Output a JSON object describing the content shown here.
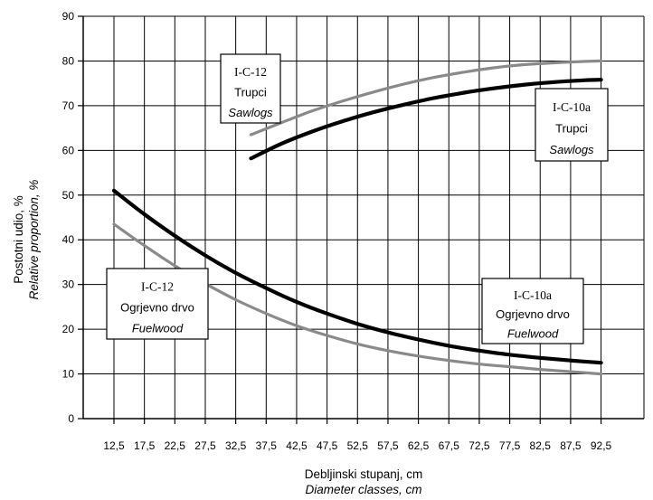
{
  "chart_data": {
    "type": "line",
    "xlabel": "Debljinski stupanj, cm",
    "xlabel_en": "Diameter classes, cm",
    "ylabel": "Postotni udio, %",
    "ylabel_en": "Relative proportion, %",
    "ylim": [
      0,
      90
    ],
    "yticks": [
      "0",
      "10",
      "20",
      "30",
      "40",
      "50",
      "60",
      "70",
      "80",
      "90"
    ],
    "xticks": [
      "12,5",
      "17,5",
      "22,5",
      "27,5",
      "32,5",
      "37,5",
      "42,5",
      "47,5",
      "52,5",
      "57,5",
      "62,5",
      "67,5",
      "72,5",
      "77,5",
      "82,5",
      "87,5",
      "92,5"
    ],
    "grid": true,
    "series": [
      {
        "name": "I-C-12 Trupci Sawlogs",
        "color": "#8a8a8a",
        "x": [
          35,
          40,
          45,
          50,
          55,
          60,
          65,
          70,
          75,
          80,
          85,
          90,
          92.5
        ],
        "values": [
          63.5,
          66.2,
          68.8,
          71.0,
          73.0,
          74.8,
          76.3,
          77.5,
          78.5,
          79.2,
          79.6,
          79.9,
          80.0
        ]
      },
      {
        "name": "I-C-10a Trupci Sawlogs",
        "color": "#000000",
        "x": [
          35,
          40,
          45,
          50,
          55,
          60,
          65,
          70,
          75,
          80,
          85,
          90,
          92.5
        ],
        "values": [
          58.2,
          61.5,
          64.2,
          66.5,
          68.5,
          70.2,
          71.7,
          72.9,
          73.9,
          74.7,
          75.3,
          75.7,
          75.8
        ]
      },
      {
        "name": "I-C-12 Ogrjevno drvo Fuelwood",
        "color": "#8a8a8a",
        "x": [
          12.5,
          17.5,
          22.5,
          27.5,
          32.5,
          37.5,
          42.5,
          47.5,
          52.5,
          57.5,
          62.5,
          67.5,
          72.5,
          77.5,
          82.5,
          87.5,
          92.5
        ],
        "values": [
          43.5,
          38.7,
          34.2,
          30.2,
          26.6,
          23.5,
          20.8,
          18.6,
          16.7,
          15.2,
          14.0,
          13.0,
          12.2,
          11.6,
          11.0,
          10.5,
          10.0
        ]
      },
      {
        "name": "I-C-10a Ogrjevno drvo Fuelwood",
        "color": "#000000",
        "x": [
          12.5,
          17.5,
          22.5,
          27.5,
          32.5,
          37.5,
          42.5,
          47.5,
          52.5,
          57.5,
          62.5,
          67.5,
          72.5,
          77.5,
          82.5,
          87.5,
          92.5
        ],
        "values": [
          51.0,
          45.7,
          40.9,
          36.5,
          32.6,
          29.2,
          26.1,
          23.5,
          21.2,
          19.3,
          17.7,
          16.3,
          15.2,
          14.3,
          13.6,
          13.0,
          12.5
        ]
      }
    ],
    "annotations": [
      {
        "id": "saw12",
        "line1": "I-C-12",
        "line2": "Trupci",
        "line3": "Sawlogs"
      },
      {
        "id": "saw10",
        "line1": "I-C-10a",
        "line2": "Trupci",
        "line3": "Sawlogs"
      },
      {
        "id": "fuel12",
        "line1": "I-C-12",
        "line2": "Ogrjevno drvo",
        "line3": "Fuelwood"
      },
      {
        "id": "fuel10",
        "line1": "I-C-10a",
        "line2": "Ogrjevno drvo",
        "line3": "Fuelwood"
      }
    ]
  }
}
